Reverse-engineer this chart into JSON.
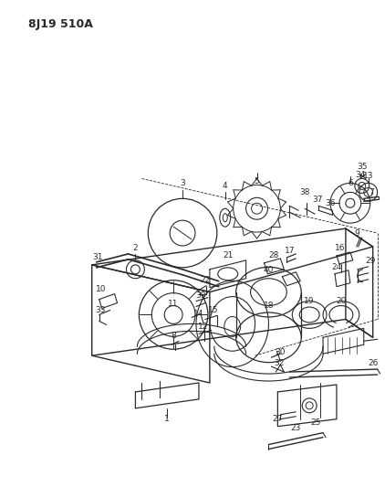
{
  "title": "8J19 510A",
  "background_color": "#ffffff",
  "figsize": [
    4.22,
    5.33
  ],
  "dpi": 100,
  "line_color": "#2a2a2a",
  "lw": 0.7
}
